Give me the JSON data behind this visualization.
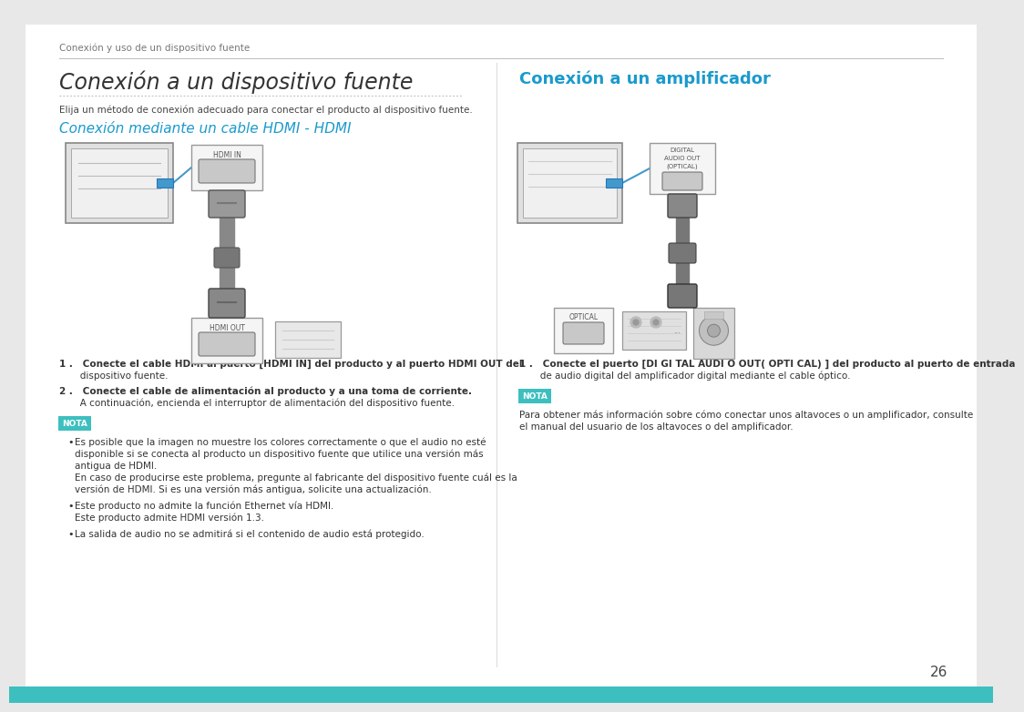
{
  "bg_color": "#e8e8e8",
  "page_bg": "#ffffff",
  "header_text": "Conexión y uso de un dispositivo fuente",
  "header_color": "#777777",
  "title_left": "Conexión a un dispositivo fuente",
  "title_left_color": "#333333",
  "title_right": "Conexión a un amplificador",
  "title_right_color": "#1a9acd",
  "subtitle_left": "Conexión mediante un cable HDMI - HDMI",
  "subtitle_left_color": "#1a9acd",
  "desc_left": "Elija un método de conexión adecuado para conectar el producto al dispositivo fuente.",
  "desc_left_color": "#444444",
  "nota_bg": "#3dbfbf",
  "nota_label": "NOTA",
  "step1_left_bold": "1 .   Conecte el cable HDMI al puerto [HDMI IN] del producto y al puerto HDMI OUT del",
  "step1_left_norm": "       dispositivo fuente.",
  "step2_left_bold": "2 .   Conecte el cable de alimentación al producto y a una toma de corriente.",
  "step2_left_norm": "       A continuación, encienda el interruptor de alimentación del dispositivo fuente.",
  "bullet1a": "Es posible que la imagen no muestre los colores correctamente o que el audio no esté",
  "bullet1b": "disponible si se conecta al producto un dispositivo fuente que utilice una versión más",
  "bullet1c": "antigua de HDMI.",
  "bullet1d": "En caso de producirse este problema, pregunte al fabricante del dispositivo fuente cuál es la",
  "bullet1e": "versión de HDMI. Si es una versión más antigua, solicite una actualización.",
  "bullet2a": "Este producto no admite la función Ethernet vía HDMI.",
  "bullet2b": "Este producto admite HDMI versión 1.3.",
  "bullet3": "La salida de audio no se admitirá si el contenido de audio está protegido.",
  "step_right_bold": "1 .   Conecte el puerto [DI GI TAL AUDI O OUT( OPTI CAL) ] del producto al puerto de entrada",
  "step_right_norm": "       de audio digital del amplificador digital mediante el cable óptico.",
  "right_note1": "Para obtener más información sobre cómo conectar unos altavoces o un amplificador, consulte",
  "right_note2": "el manual del usuario de los altavoces o del amplificador.",
  "page_number": "26",
  "teal_color": "#3dbfbf",
  "blue_color": "#1a9acd",
  "dark_text": "#333333",
  "gray_text": "#666666",
  "label_hdmi_in": "HDMI IN",
  "label_hdmi_out": "HDMI OUT",
  "label_digital_line1": "DIGITAL",
  "label_digital_line2": "AUDIO OUT",
  "label_digital_line3": "(OPTICAL)",
  "label_optical": "OPTICAL"
}
